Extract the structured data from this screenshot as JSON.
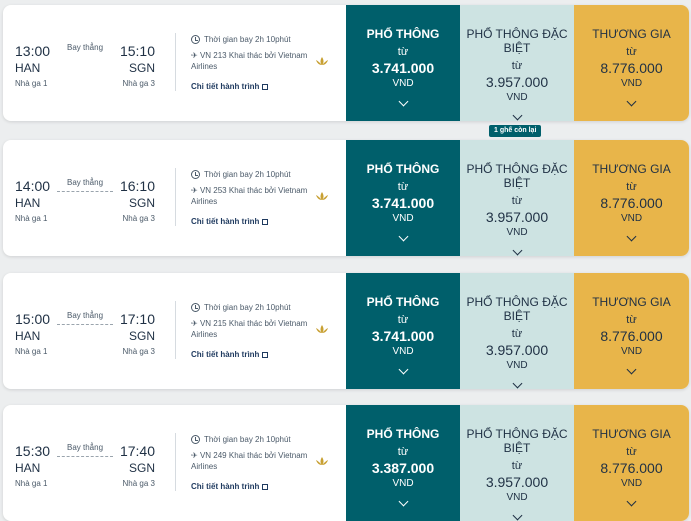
{
  "labels": {
    "stops": "Bay thẳng",
    "duration_prefix": "Thời gian bay",
    "operated_by": "Khai thác bởi Vietnam Airlines",
    "details_link": "Chi tiết hành trình",
    "from": "từ",
    "currency": "VND",
    "fare_economy": "PHỔ THÔNG",
    "fare_deluxe": "PHỔ THÔNG ĐẶC BIỆT",
    "fare_business": "THƯƠNG GIA"
  },
  "seat_badge": "1 ghế còn lại",
  "flights": [
    {
      "dep_time": "13:00",
      "dep_code": "HAN",
      "dep_terminal": "Nhà ga 1",
      "arr_time": "15:10",
      "arr_code": "SGN",
      "arr_terminal": "Nhà ga 3",
      "duration": "Thời gian bay 2h 10phút",
      "flight_no": "VN 213",
      "economy": "3.741.000",
      "deluxe": "3.957.000",
      "business": "8.776.000"
    },
    {
      "dep_time": "14:00",
      "dep_code": "HAN",
      "dep_terminal": "Nhà ga 1",
      "arr_time": "16:10",
      "arr_code": "SGN",
      "arr_terminal": "Nhà ga 3",
      "duration": "Thời gian bay 2h 10phút",
      "flight_no": "VN 253",
      "economy": "3.741.000",
      "deluxe": "3.957.000",
      "business": "8.776.000"
    },
    {
      "dep_time": "15:00",
      "dep_code": "HAN",
      "dep_terminal": "Nhà ga 1",
      "arr_time": "17:10",
      "arr_code": "SGN",
      "arr_terminal": "Nhà ga 3",
      "duration": "Thời gian bay 2h 10phút",
      "flight_no": "VN 215",
      "economy": "3.741.000",
      "deluxe": "3.957.000",
      "business": "8.776.000"
    },
    {
      "dep_time": "15:30",
      "dep_code": "HAN",
      "dep_terminal": "Nhà ga 1",
      "arr_time": "17:40",
      "arr_code": "SGN",
      "arr_terminal": "Nhà ga 3",
      "duration": "Thời gian bay 2h 10phút",
      "flight_no": "VN 249",
      "economy": "3.387.000",
      "deluxe": "3.957.000",
      "business": "8.776.000"
    }
  ],
  "colors": {
    "economy": "#005f6b",
    "deluxe": "#cde3e2",
    "business": "#e8b54a"
  }
}
